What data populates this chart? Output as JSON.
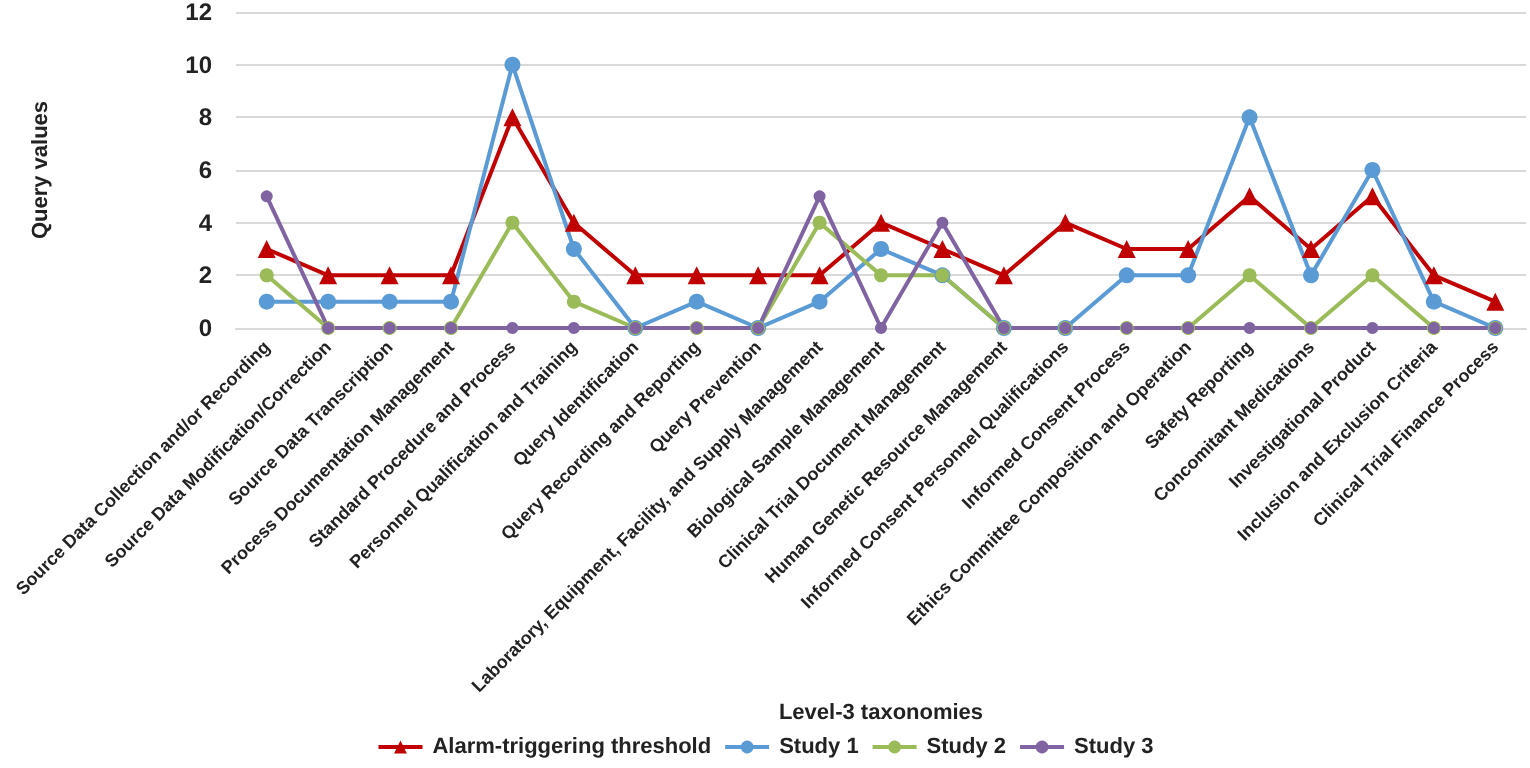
{
  "chart_data": {
    "type": "line",
    "xlabel": "Level-3 taxonomies",
    "ylabel": "Query values",
    "categories": [
      "Source Data Collection and/or Recording",
      "Source Data Modification/Correction",
      "Source Data Transcription",
      "Process Documentation Management",
      "Standard Procedure and Process",
      "Personnel Qualification and Training",
      "Query Identification",
      "Query Recording and Reporting",
      "Query Prevention",
      "Laboratory, Equipment, Facility, and Supply Management",
      "Biological Sample Management",
      "Clinical Trial Document Management",
      "Human Genetic Resource Management",
      "Informed Consent Personnel Qualifications",
      "Informed Consent Process",
      "Ethics Committee Composition and Operation",
      "Safety Reporting",
      "Concomitant Medications",
      "Investigational Product",
      "Inclusion and Exclusion Criteria",
      "Clinical Trial Finance Process"
    ],
    "series": [
      {
        "name": "Alarm-triggering threshold",
        "color": "#c00000",
        "marker": "triangle",
        "values": [
          3,
          2,
          2,
          2,
          8,
          4,
          2,
          2,
          2,
          2,
          4,
          3,
          2,
          4,
          3,
          3,
          5,
          3,
          5,
          2,
          1
        ]
      },
      {
        "name": "Study 1",
        "color": "#5b9bd5",
        "marker": "circle",
        "values": [
          1,
          1,
          1,
          1,
          10,
          3,
          0,
          1,
          0,
          1,
          3,
          2,
          0,
          0,
          2,
          2,
          8,
          2,
          6,
          1,
          0
        ]
      },
      {
        "name": "Study 2",
        "color": "#9bbb59",
        "marker": "circle",
        "values": [
          2,
          0,
          0,
          0,
          4,
          1,
          0,
          0,
          0,
          4,
          2,
          2,
          0,
          0,
          0,
          0,
          2,
          0,
          2,
          0,
          0
        ]
      },
      {
        "name": "Study 3",
        "color": "#8064a2",
        "marker": "circle",
        "values": [
          5,
          0,
          0,
          0,
          0,
          0,
          0,
          0,
          0,
          5,
          0,
          4,
          0,
          0,
          0,
          0,
          0,
          0,
          0,
          0,
          0
        ]
      }
    ],
    "ylim": [
      0,
      12
    ],
    "yticks": [
      0,
      2,
      4,
      6,
      8,
      10,
      12
    ],
    "grid": "y",
    "legend": "bottom",
    "line_style": "solid"
  }
}
